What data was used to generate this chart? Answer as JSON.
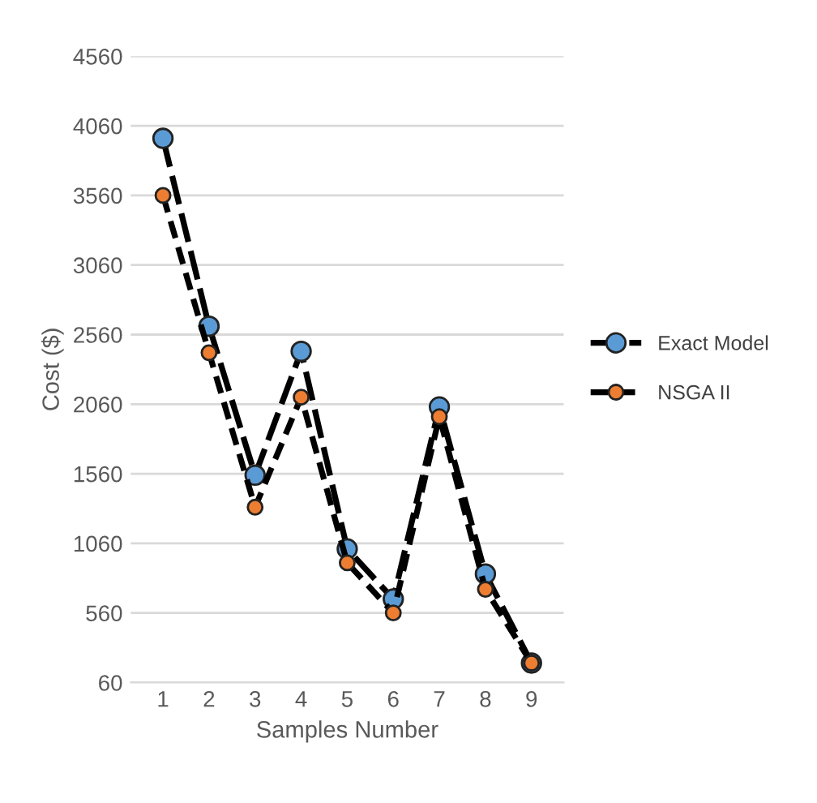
{
  "chart_data": {
    "type": "line",
    "xlabel": "Samples Number",
    "ylabel": "Cost ($)",
    "categories": [
      "1",
      "2",
      "3",
      "4",
      "5",
      "6",
      "7",
      "8",
      "9"
    ],
    "series": [
      {
        "name": "Exact Model",
        "color": "#5b9bd5",
        "values": [
          3970,
          2620,
          1550,
          2440,
          1020,
          660,
          2040,
          840,
          200
        ]
      },
      {
        "name": "NSGA II",
        "color": "#ed7d31",
        "values": [
          3560,
          2430,
          1320,
          2110,
          920,
          560,
          1970,
          730,
          200
        ]
      }
    ],
    "ylim": [
      60,
      4560
    ],
    "yticks": [
      60,
      560,
      1060,
      1560,
      2060,
      2560,
      3060,
      3560,
      4060,
      4560
    ],
    "grid": "y",
    "legend": "right",
    "marker": "circle",
    "line_style": "dashed"
  }
}
